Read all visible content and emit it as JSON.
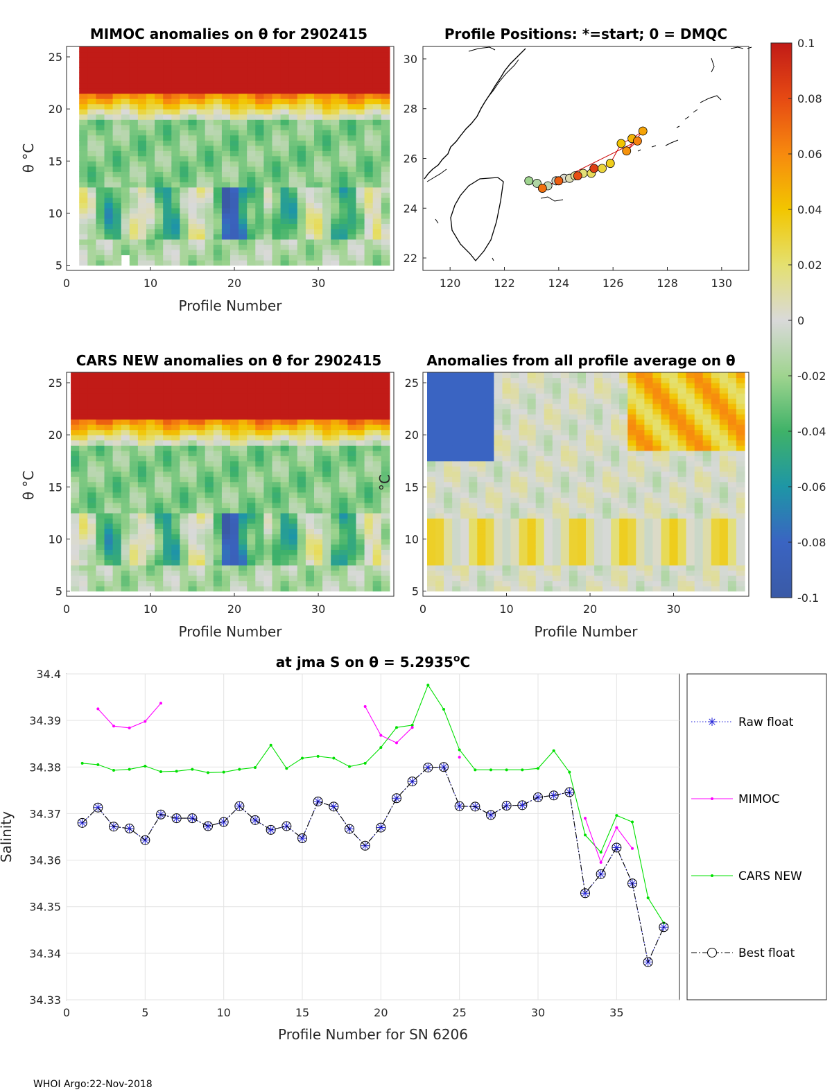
{
  "footer": "WHOI Argo:22-Nov-2018",
  "panels": {
    "mimoc": {
      "title": "MIMOC anomalies on θ  for 2902415",
      "xlabel": "Profile Number",
      "ylabel": "θ °C",
      "xticks": [
        "0",
        "10",
        "20",
        "30"
      ],
      "yticks": [
        "5",
        "10",
        "15",
        "20",
        "25"
      ]
    },
    "map": {
      "title": "Profile Positions: *=start; 0 = DMQC",
      "xticks": [
        "120",
        "122",
        "124",
        "126",
        "128",
        "130"
      ],
      "yticks": [
        "22",
        "24",
        "26",
        "28",
        "30"
      ]
    },
    "cars": {
      "title": "CARS NEW anomalies on θ for 2902415",
      "xlabel": "Profile Number",
      "ylabel": "θ °C",
      "xticks": [
        "0",
        "10",
        "20",
        "30"
      ],
      "yticks": [
        "5",
        "10",
        "15",
        "20",
        "25"
      ]
    },
    "avg": {
      "title": "Anomalies from all profile average on θ",
      "xlabel": "Profile Number",
      "ylabel_fragment": "°C",
      "xticks": [
        "0",
        "10",
        "20",
        "30"
      ],
      "yticks": [
        "5",
        "10",
        "15",
        "20",
        "25"
      ]
    }
  },
  "colorbar": {
    "ticks": [
      "0.1",
      "0.08",
      "0.06",
      "0.04",
      "0.02",
      "0",
      "-0.02",
      "-0.04",
      "-0.06",
      "-0.08",
      "-0.1"
    ]
  },
  "chart_data": [
    {
      "type": "heatmap",
      "title": "MIMOC anomalies on θ  for 2902415",
      "xlabel": "Profile Number",
      "ylabel": "θ °C",
      "xlim": [
        0,
        39
      ],
      "ylim": [
        4.5,
        26
      ],
      "clim": [
        -0.1,
        0.1
      ]
    },
    {
      "type": "scatter",
      "title": "Profile Positions: *=start; 0 = DMQC",
      "xlim": [
        119,
        131
      ],
      "ylim": [
        21.5,
        30.5
      ],
      "lon": [
        122.9,
        123.2,
        123.6,
        123.9,
        124.2,
        124.4,
        124.6,
        124.9,
        125.2,
        125.6,
        125.9,
        126.3,
        126.7,
        127.1,
        126.5,
        126.9,
        123.4,
        124.0,
        124.7,
        125.3
      ],
      "lat": [
        25.1,
        25.0,
        24.9,
        25.1,
        25.2,
        25.2,
        25.3,
        25.4,
        25.4,
        25.6,
        25.8,
        26.6,
        26.8,
        27.1,
        26.3,
        26.7,
        24.8,
        25.1,
        25.3,
        25.6
      ]
    },
    {
      "type": "heatmap",
      "title": "CARS NEW anomalies on θ for 2902415",
      "xlabel": "Profile Number",
      "ylabel": "θ °C",
      "xlim": [
        0,
        39
      ],
      "ylim": [
        4.5,
        26
      ],
      "clim": [
        -0.1,
        0.1
      ]
    },
    {
      "type": "heatmap",
      "title": "Anomalies from all profile average on θ",
      "xlabel": "Profile Number",
      "xlim": [
        0,
        39
      ],
      "ylim": [
        4.5,
        26
      ],
      "clim": [
        -0.1,
        0.1
      ]
    },
    {
      "type": "line",
      "title": "at jma S on θ = 5.2935°C",
      "title_main": "at jma S on θ = 5.2935",
      "title_sup": "o",
      "title_tail": "C",
      "xlabel": "Profile Number for SN 6206",
      "ylabel": "Salinity",
      "xlim": [
        0,
        39
      ],
      "ylim": [
        34.33,
        34.4
      ],
      "xticks": [
        "0",
        "5",
        "10",
        "15",
        "20",
        "25",
        "30",
        "35"
      ],
      "yticks": [
        "34.33",
        "34.34",
        "34.35",
        "34.36",
        "34.37",
        "34.38",
        "34.39",
        "34.4"
      ],
      "x": [
        1,
        2,
        3,
        4,
        5,
        6,
        7,
        8,
        9,
        10,
        11,
        12,
        13,
        14,
        15,
        16,
        17,
        18,
        19,
        20,
        21,
        22,
        23,
        24,
        25,
        26,
        27,
        28,
        29,
        30,
        31,
        32,
        33,
        34,
        35,
        36,
        37,
        38
      ],
      "series": [
        {
          "name": "Raw float",
          "color": "#1f1fd8",
          "style": "dotted",
          "values": [
            34.368,
            34.3713,
            34.3672,
            34.3668,
            34.3643,
            34.3698,
            34.369,
            34.369,
            34.3673,
            34.3682,
            34.3716,
            34.3686,
            34.3665,
            34.3673,
            34.3647,
            34.3726,
            34.3715,
            34.3667,
            34.3631,
            34.367,
            34.3733,
            34.3769,
            34.3799,
            34.38,
            34.3716,
            34.3715,
            34.3697,
            34.3717,
            34.3718,
            34.3735,
            34.3739,
            34.3746,
            34.3529,
            34.357,
            34.3627,
            34.355,
            34.3381,
            34.3456
          ]
        },
        {
          "name": "MIMOC",
          "color": "#ff00ff",
          "style": "solid",
          "values": [
            null,
            34.3925,
            34.3888,
            34.3884,
            34.3898,
            34.3937,
            null,
            null,
            null,
            null,
            null,
            null,
            null,
            null,
            null,
            null,
            null,
            null,
            34.393,
            34.3868,
            34.3852,
            34.3885,
            null,
            null,
            34.3821,
            null,
            null,
            null,
            null,
            null,
            null,
            null,
            34.369,
            34.3595,
            34.367,
            34.3625,
            null,
            null
          ]
        },
        {
          "name": "CARS NEW",
          "color": "#00e000",
          "style": "solid",
          "values": [
            34.3808,
            34.3805,
            34.3793,
            34.3795,
            34.3802,
            34.379,
            34.3791,
            34.3795,
            34.3788,
            34.3789,
            34.3795,
            34.3799,
            34.3847,
            34.3797,
            34.3819,
            34.3823,
            34.3819,
            34.3801,
            34.3808,
            34.3842,
            34.3885,
            34.389,
            34.3976,
            34.3924,
            34.3837,
            34.3794,
            34.3794,
            34.3794,
            34.3794,
            34.3797,
            34.3835,
            34.3789,
            34.3654,
            34.3617,
            34.3696,
            34.3682,
            34.3519,
            34.3465
          ]
        },
        {
          "name": "Best float",
          "color": "#000000",
          "style": "dashdot",
          "values": [
            34.368,
            34.3713,
            34.3672,
            34.3668,
            34.3643,
            34.3698,
            34.369,
            34.369,
            34.3673,
            34.3682,
            34.3716,
            34.3686,
            34.3665,
            34.3673,
            34.3647,
            34.3726,
            34.3715,
            34.3667,
            34.3631,
            34.367,
            34.3733,
            34.3769,
            34.3799,
            34.38,
            34.3716,
            34.3715,
            34.3697,
            34.3717,
            34.3718,
            34.3735,
            34.3739,
            34.3746,
            34.3529,
            34.357,
            34.3627,
            34.355,
            34.3381,
            34.3456
          ]
        }
      ]
    }
  ]
}
